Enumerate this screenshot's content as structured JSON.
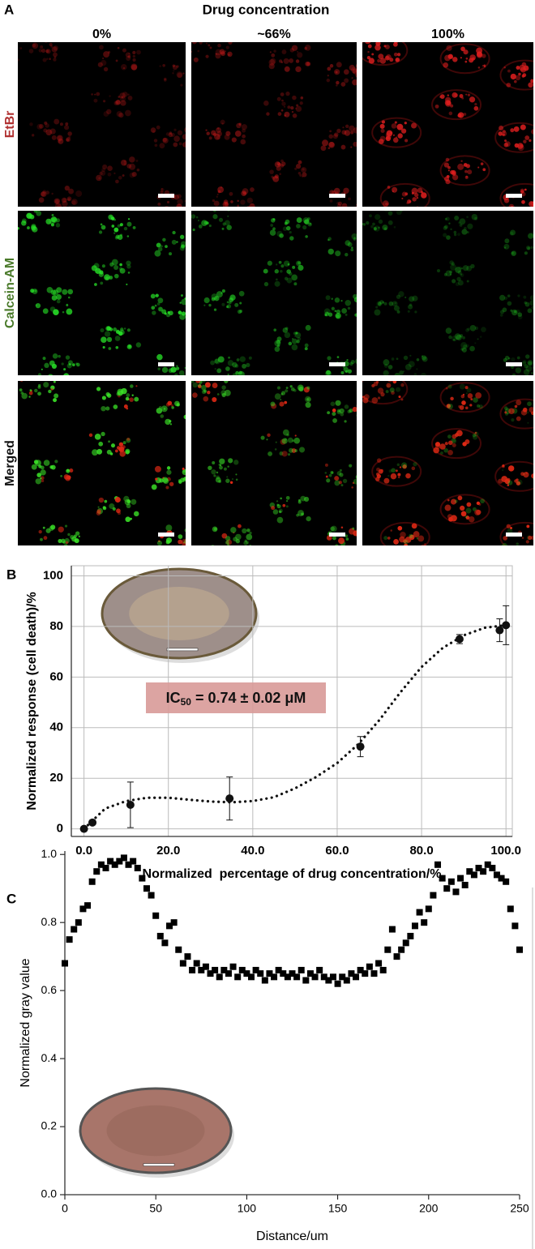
{
  "panel_a": {
    "label": "A",
    "title": "Drug concentration",
    "columns": [
      "0%",
      "~66%",
      "100%"
    ],
    "rows": [
      "EtBr",
      "Calcein-AM",
      "Merged"
    ]
  },
  "chart_data": [
    {
      "type": "scatter",
      "label": "B",
      "marker": "circle",
      "grid": true,
      "x_label": "Normalized  percentage of drug concentration/%",
      "y_label": "Normalized response (cell death)/%",
      "annotation": {
        "main": "IC",
        "sub": "50",
        "rest": " = 0.74 ± 0.02 μM"
      },
      "xlim": [
        -3,
        101.5
      ],
      "ylim": [
        -3,
        104
      ],
      "xticks": [
        {
          "value": 0,
          "label": "0.0"
        },
        {
          "value": 20,
          "label": "20.0"
        },
        {
          "value": 40,
          "label": "40.0"
        },
        {
          "value": 60,
          "label": "60.0"
        },
        {
          "value": 80,
          "label": "80.0"
        },
        {
          "value": 100,
          "label": "100.0"
        }
      ],
      "yticks": [
        0,
        20,
        40,
        60,
        80,
        100
      ],
      "series": [
        {
          "color": "#111111",
          "x": [
            0,
            2,
            11,
            34.5,
            65.5,
            89,
            98.5,
            100
          ],
          "values": [
            0,
            2.5,
            9.5,
            12,
            32.5,
            75,
            78.5,
            80.5
          ],
          "errors": [
            null,
            null,
            9,
            8.5,
            4,
            1.8,
            4.5,
            7.7
          ]
        },
        {
          "color": "#111111",
          "style": "dotted",
          "x": [
            0,
            5,
            10,
            15,
            20,
            25,
            30,
            35,
            40,
            45,
            50,
            55,
            60,
            65,
            70,
            75,
            80,
            85,
            90,
            95,
            100
          ],
          "values": [
            0,
            8,
            11,
            12.3,
            12.3,
            11.5,
            10.8,
            10.5,
            11,
            12.5,
            16,
            20.5,
            26,
            33.5,
            43,
            54,
            64,
            71.5,
            76.5,
            79.5,
            80.5
          ]
        }
      ]
    },
    {
      "type": "scatter",
      "label": "C",
      "marker": "square",
      "grid": false,
      "x_label": "Distance/um",
      "y_label": "Normalized gray value",
      "xlim": [
        0,
        250
      ],
      "ylim": [
        0,
        1.01
      ],
      "xticks": [
        0,
        50,
        100,
        150,
        200,
        250
      ],
      "yticks": [
        {
          "value": 0,
          "label": "0.0"
        },
        {
          "value": 0.2,
          "label": "0.2"
        },
        {
          "value": 0.4,
          "label": "0.4"
        },
        {
          "value": 0.6,
          "label": "0.6"
        },
        {
          "value": 0.8,
          "label": "0.8"
        },
        {
          "value": 1,
          "label": "1.0"
        }
      ],
      "series": [
        {
          "color": "#000000",
          "x": [
            0,
            2.5,
            5,
            7.5,
            10,
            12.5,
            15,
            17.5,
            20,
            22.5,
            25,
            27.5,
            30,
            32.5,
            35,
            37.5,
            40,
            42.5,
            45,
            47.5,
            50,
            52.5,
            55,
            57.5,
            60,
            62.5,
            65,
            67.5,
            70,
            72.5,
            75,
            77.5,
            80,
            82.5,
            85,
            87.5,
            90,
            92.5,
            95,
            97.5,
            100,
            102.5,
            105,
            107.5,
            110,
            112.5,
            115,
            117.5,
            120,
            122.5,
            125,
            127.5,
            130,
            132.5,
            135,
            137.5,
            140,
            142.5,
            145,
            147.5,
            150,
            152.5,
            155,
            157.5,
            160,
            162.5,
            165,
            167.5,
            170,
            172.5,
            175,
            177.5,
            180,
            182.5,
            185,
            187.5,
            190,
            192.5,
            195,
            197.5,
            200,
            202.5,
            205,
            207.5,
            210,
            212.5,
            215,
            217.5,
            220,
            222.5,
            225,
            227.5,
            230,
            232.5,
            235,
            237.5,
            240,
            242.5,
            245,
            247.5,
            250
          ],
          "values": [
            0.68,
            0.75,
            0.78,
            0.8,
            0.84,
            0.85,
            0.92,
            0.95,
            0.97,
            0.96,
            0.98,
            0.97,
            0.98,
            0.99,
            0.97,
            0.98,
            0.96,
            0.93,
            0.9,
            0.88,
            0.82,
            0.76,
            0.74,
            0.79,
            0.8,
            0.72,
            0.68,
            0.7,
            0.66,
            0.68,
            0.66,
            0.67,
            0.65,
            0.66,
            0.64,
            0.66,
            0.65,
            0.67,
            0.64,
            0.66,
            0.65,
            0.64,
            0.66,
            0.65,
            0.63,
            0.65,
            0.64,
            0.66,
            0.65,
            0.64,
            0.65,
            0.64,
            0.66,
            0.63,
            0.65,
            0.64,
            0.66,
            0.64,
            0.63,
            0.64,
            0.62,
            0.64,
            0.63,
            0.65,
            0.64,
            0.66,
            0.65,
            0.67,
            0.65,
            0.68,
            0.66,
            0.72,
            0.78,
            0.7,
            0.72,
            0.74,
            0.76,
            0.79,
            0.83,
            0.8,
            0.84,
            0.88,
            0.97,
            0.93,
            0.9,
            0.92,
            0.89,
            0.93,
            0.91,
            0.95,
            0.94,
            0.96,
            0.95,
            0.97,
            0.96,
            0.94,
            0.93,
            0.92,
            0.84,
            0.79,
            0.72
          ]
        }
      ]
    }
  ]
}
